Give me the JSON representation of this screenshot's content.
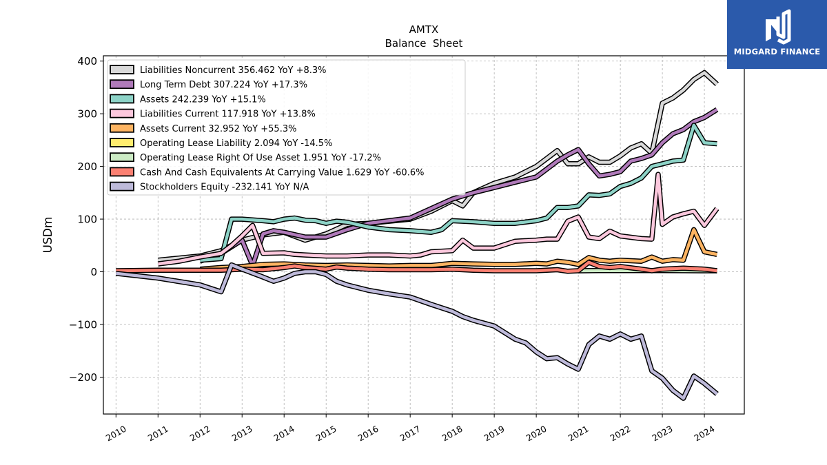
{
  "chart_data": {
    "type": "line",
    "title": "AMTX",
    "subtitle": "Balance  Sheet",
    "ylabel": "USDm",
    "xlabel": "",
    "xlim": [
      2009.7,
      2024.95
    ],
    "ylim": [
      -270,
      410
    ],
    "yticks": [
      400,
      300,
      200,
      100,
      0,
      -100,
      -200
    ],
    "ytick_labels": [
      "400",
      "300",
      "200",
      "100",
      "0",
      "−100",
      "−200"
    ],
    "xticks": [
      2010,
      2011,
      2012,
      2013,
      2014,
      2015,
      2016,
      2017,
      2018,
      2019,
      2020,
      2021,
      2022,
      2023,
      2024
    ],
    "xtick_labels": [
      "2010",
      "2011",
      "2012",
      "2013",
      "2014",
      "2015",
      "2016",
      "2017",
      "2018",
      "2019",
      "2020",
      "2021",
      "2022",
      "2023",
      "2024"
    ],
    "grid": true,
    "legend_position": "top-left",
    "series": [
      {
        "name": "Liabilities Noncurrent",
        "legend": "Liabilities Noncurrent  356.462 YoY +8.3%",
        "color": "#d9d9d9",
        "points": [
          [
            2011.0,
            22
          ],
          [
            2012.0,
            30
          ],
          [
            2012.5,
            40
          ],
          [
            2013.0,
            60
          ],
          [
            2013.5,
            70
          ],
          [
            2014.0,
            75
          ],
          [
            2014.5,
            60
          ],
          [
            2015.0,
            72
          ],
          [
            2015.5,
            90
          ],
          [
            2016.0,
            92
          ],
          [
            2016.5,
            96
          ],
          [
            2017.0,
            100
          ],
          [
            2017.5,
            115
          ],
          [
            2018.0,
            135
          ],
          [
            2018.25,
            125
          ],
          [
            2018.5,
            150
          ],
          [
            2019.0,
            168
          ],
          [
            2019.5,
            180
          ],
          [
            2020.0,
            200
          ],
          [
            2020.25,
            215
          ],
          [
            2020.5,
            230
          ],
          [
            2020.75,
            205
          ],
          [
            2021.0,
            205
          ],
          [
            2021.25,
            218
          ],
          [
            2021.5,
            208
          ],
          [
            2021.75,
            208
          ],
          [
            2022.0,
            220
          ],
          [
            2022.25,
            235
          ],
          [
            2022.5,
            243
          ],
          [
            2022.75,
            225
          ],
          [
            2023.0,
            320
          ],
          [
            2023.25,
            330
          ],
          [
            2023.5,
            345
          ],
          [
            2023.75,
            365
          ],
          [
            2024.0,
            378
          ],
          [
            2024.3,
            356
          ]
        ]
      },
      {
        "name": "Long Term Debt",
        "legend": "Long Term Debt  307.224 YoY +17.3%",
        "color": "#b07aba",
        "points": [
          [
            2012.0,
            20
          ],
          [
            2012.5,
            35
          ],
          [
            2013.0,
            60
          ],
          [
            2013.25,
            12
          ],
          [
            2013.5,
            72
          ],
          [
            2013.75,
            78
          ],
          [
            2014.0,
            75
          ],
          [
            2014.5,
            66
          ],
          [
            2015.0,
            66
          ],
          [
            2015.5,
            80
          ],
          [
            2016.0,
            92
          ],
          [
            2016.5,
            97
          ],
          [
            2017.0,
            102
          ],
          [
            2017.5,
            120
          ],
          [
            2018.0,
            138
          ],
          [
            2018.5,
            150
          ],
          [
            2019.0,
            160
          ],
          [
            2019.5,
            170
          ],
          [
            2020.0,
            180
          ],
          [
            2020.25,
            195
          ],
          [
            2020.5,
            210
          ],
          [
            2020.75,
            222
          ],
          [
            2021.0,
            232
          ],
          [
            2021.25,
            205
          ],
          [
            2021.5,
            182
          ],
          [
            2021.75,
            185
          ],
          [
            2022.0,
            190
          ],
          [
            2022.25,
            210
          ],
          [
            2022.5,
            215
          ],
          [
            2022.75,
            222
          ],
          [
            2023.0,
            245
          ],
          [
            2023.25,
            262
          ],
          [
            2023.5,
            270
          ],
          [
            2023.75,
            285
          ],
          [
            2024.0,
            293
          ],
          [
            2024.3,
            308
          ]
        ]
      },
      {
        "name": "Assets",
        "legend": "Assets  242.239 YoY +15.1%",
        "color": "#8dd3c7",
        "points": [
          [
            2012.0,
            22
          ],
          [
            2012.5,
            25
          ],
          [
            2012.75,
            100
          ],
          [
            2013.0,
            100
          ],
          [
            2013.5,
            97
          ],
          [
            2013.75,
            95
          ],
          [
            2014.0,
            100
          ],
          [
            2014.25,
            102
          ],
          [
            2014.5,
            98
          ],
          [
            2014.75,
            97
          ],
          [
            2015.0,
            92
          ],
          [
            2015.25,
            96
          ],
          [
            2015.5,
            94
          ],
          [
            2016.0,
            85
          ],
          [
            2016.5,
            80
          ],
          [
            2017.0,
            78
          ],
          [
            2017.5,
            75
          ],
          [
            2017.75,
            80
          ],
          [
            2018.0,
            97
          ],
          [
            2018.5,
            95
          ],
          [
            2019.0,
            92
          ],
          [
            2019.5,
            92
          ],
          [
            2020.0,
            97
          ],
          [
            2020.25,
            102
          ],
          [
            2020.5,
            122
          ],
          [
            2020.75,
            122
          ],
          [
            2021.0,
            125
          ],
          [
            2021.25,
            146
          ],
          [
            2021.5,
            145
          ],
          [
            2021.75,
            148
          ],
          [
            2022.0,
            162
          ],
          [
            2022.25,
            168
          ],
          [
            2022.5,
            178
          ],
          [
            2022.75,
            200
          ],
          [
            2023.0,
            205
          ],
          [
            2023.25,
            210
          ],
          [
            2023.5,
            212
          ],
          [
            2023.75,
            278
          ],
          [
            2024.0,
            245
          ],
          [
            2024.3,
            243
          ]
        ]
      },
      {
        "name": "Liabilities Current",
        "legend": "Liabilities Current  117.918 YoY +13.8%",
        "color": "#fcc8dd",
        "points": [
          [
            2011.0,
            15
          ],
          [
            2011.5,
            20
          ],
          [
            2012.0,
            28
          ],
          [
            2012.5,
            35
          ],
          [
            2012.75,
            50
          ],
          [
            2013.0,
            68
          ],
          [
            2013.25,
            88
          ],
          [
            2013.5,
            35
          ],
          [
            2014.0,
            36
          ],
          [
            2014.25,
            33
          ],
          [
            2014.5,
            32
          ],
          [
            2015.0,
            30
          ],
          [
            2015.5,
            30
          ],
          [
            2016.0,
            32
          ],
          [
            2016.5,
            32
          ],
          [
            2017.0,
            30
          ],
          [
            2017.25,
            32
          ],
          [
            2017.5,
            38
          ],
          [
            2018.0,
            40
          ],
          [
            2018.25,
            60
          ],
          [
            2018.5,
            45
          ],
          [
            2019.0,
            45
          ],
          [
            2019.5,
            58
          ],
          [
            2020.0,
            60
          ],
          [
            2020.25,
            62
          ],
          [
            2020.5,
            62
          ],
          [
            2020.75,
            96
          ],
          [
            2021.0,
            104
          ],
          [
            2021.25,
            66
          ],
          [
            2021.5,
            63
          ],
          [
            2021.75,
            77
          ],
          [
            2022.0,
            68
          ],
          [
            2022.5,
            63
          ],
          [
            2022.75,
            62
          ],
          [
            2022.9,
            185
          ],
          [
            2023.0,
            90
          ],
          [
            2023.25,
            104
          ],
          [
            2023.5,
            110
          ],
          [
            2023.75,
            115
          ],
          [
            2024.0,
            88
          ],
          [
            2024.3,
            120
          ]
        ]
      },
      {
        "name": "Assets Current",
        "legend": "Assets Current  32.952 YoY +55.3%",
        "color": "#fdb462",
        "points": [
          [
            2012.0,
            5
          ],
          [
            2012.5,
            8
          ],
          [
            2013.0,
            10
          ],
          [
            2013.5,
            14
          ],
          [
            2014.0,
            15
          ],
          [
            2014.5,
            13
          ],
          [
            2015.0,
            12
          ],
          [
            2015.5,
            13
          ],
          [
            2016.0,
            12
          ],
          [
            2016.5,
            11
          ],
          [
            2017.0,
            12
          ],
          [
            2017.5,
            12
          ],
          [
            2018.0,
            16
          ],
          [
            2018.5,
            15
          ],
          [
            2019.0,
            14
          ],
          [
            2019.5,
            14
          ],
          [
            2020.0,
            16
          ],
          [
            2020.25,
            15
          ],
          [
            2020.5,
            20
          ],
          [
            2020.75,
            18
          ],
          [
            2021.0,
            14
          ],
          [
            2021.25,
            27
          ],
          [
            2021.5,
            22
          ],
          [
            2021.75,
            20
          ],
          [
            2022.0,
            22
          ],
          [
            2022.5,
            20
          ],
          [
            2022.75,
            28
          ],
          [
            2023.0,
            20
          ],
          [
            2023.25,
            23
          ],
          [
            2023.5,
            22
          ],
          [
            2023.75,
            80
          ],
          [
            2024.0,
            38
          ],
          [
            2024.3,
            33
          ]
        ]
      },
      {
        "name": "Operating Lease Liability",
        "legend": "Operating Lease Liability  2.094 YoY -14.5%",
        "color": "#ffed6f",
        "points": [
          [
            2021.0,
            2
          ],
          [
            2021.5,
            2.5
          ],
          [
            2022.0,
            2.4
          ],
          [
            2022.5,
            2.3
          ],
          [
            2023.0,
            2.3
          ],
          [
            2023.5,
            2.2
          ],
          [
            2024.0,
            2.1
          ],
          [
            2024.3,
            2.1
          ]
        ]
      },
      {
        "name": "Operating Lease Right Of Use Asset",
        "legend": "Operating Lease Right Of Use Asset  1.951 YoY -17.2%",
        "color": "#ccebc5",
        "points": [
          [
            2021.0,
            2
          ],
          [
            2021.5,
            2.3
          ],
          [
            2022.0,
            2.3
          ],
          [
            2022.5,
            2.2
          ],
          [
            2023.0,
            2.2
          ],
          [
            2023.5,
            2.1
          ],
          [
            2024.0,
            2.0
          ],
          [
            2024.3,
            1.95
          ]
        ]
      },
      {
        "name": "Cash And Cash Equivalents At Carrying Value",
        "legend": "Cash And Cash Equivalents At Carrying Value  1.629 YoY -60.6%",
        "color": "#fb8072",
        "points": [
          [
            2010.0,
            2
          ],
          [
            2011.0,
            3
          ],
          [
            2012.0,
            3
          ],
          [
            2012.5,
            3
          ],
          [
            2013.0,
            5
          ],
          [
            2013.5,
            4
          ],
          [
            2014.0,
            8
          ],
          [
            2014.25,
            11
          ],
          [
            2014.5,
            8
          ],
          [
            2015.0,
            5
          ],
          [
            2015.25,
            9
          ],
          [
            2015.5,
            7
          ],
          [
            2016.0,
            5
          ],
          [
            2016.5,
            4
          ],
          [
            2017.0,
            4
          ],
          [
            2017.5,
            4
          ],
          [
            2018.0,
            5
          ],
          [
            2018.5,
            3
          ],
          [
            2019.0,
            2
          ],
          [
            2019.5,
            2
          ],
          [
            2020.0,
            2
          ],
          [
            2020.5,
            4
          ],
          [
            2020.75,
            1
          ],
          [
            2021.0,
            2
          ],
          [
            2021.25,
            18
          ],
          [
            2021.5,
            10
          ],
          [
            2021.75,
            8
          ],
          [
            2022.0,
            10
          ],
          [
            2022.5,
            5
          ],
          [
            2022.75,
            2
          ],
          [
            2023.0,
            5
          ],
          [
            2023.5,
            7
          ],
          [
            2024.0,
            5
          ],
          [
            2024.3,
            2
          ]
        ]
      },
      {
        "name": "Stockholders Equity",
        "legend": "Stockholders Equity  -232.141 YoY N/A",
        "color": "#bebada",
        "points": [
          [
            2010.0,
            -3
          ],
          [
            2011.0,
            -12
          ],
          [
            2012.0,
            -25
          ],
          [
            2012.5,
            -38
          ],
          [
            2012.75,
            13
          ],
          [
            2013.0,
            5
          ],
          [
            2013.5,
            -10
          ],
          [
            2013.75,
            -18
          ],
          [
            2014.0,
            -12
          ],
          [
            2014.25,
            -3
          ],
          [
            2014.5,
            0
          ],
          [
            2014.75,
            0
          ],
          [
            2015.0,
            -5
          ],
          [
            2015.25,
            -18
          ],
          [
            2015.5,
            -25
          ],
          [
            2016.0,
            -35
          ],
          [
            2016.5,
            -42
          ],
          [
            2017.0,
            -48
          ],
          [
            2017.5,
            -62
          ],
          [
            2018.0,
            -75
          ],
          [
            2018.25,
            -85
          ],
          [
            2018.5,
            -92
          ],
          [
            2019.0,
            -103
          ],
          [
            2019.5,
            -128
          ],
          [
            2019.75,
            -135
          ],
          [
            2020.0,
            -152
          ],
          [
            2020.25,
            -165
          ],
          [
            2020.5,
            -163
          ],
          [
            2020.75,
            -175
          ],
          [
            2021.0,
            -185
          ],
          [
            2021.25,
            -138
          ],
          [
            2021.5,
            -122
          ],
          [
            2021.75,
            -128
          ],
          [
            2022.0,
            -118
          ],
          [
            2022.25,
            -128
          ],
          [
            2022.5,
            -122
          ],
          [
            2022.75,
            -188
          ],
          [
            2023.0,
            -202
          ],
          [
            2023.25,
            -225
          ],
          [
            2023.5,
            -240
          ],
          [
            2023.75,
            -198
          ],
          [
            2024.0,
            -212
          ],
          [
            2024.3,
            -232
          ]
        ]
      }
    ]
  },
  "watermark": {
    "brand": "MIDGARD FINANCE",
    "background": "#2b5aab"
  }
}
